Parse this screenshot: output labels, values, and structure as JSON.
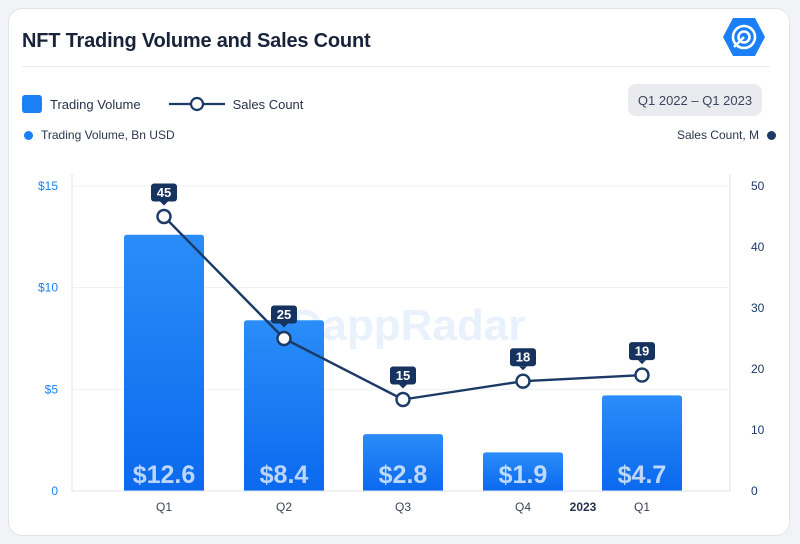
{
  "title": "NFT Trading Volume and Sales Count",
  "logo_icon": "dappradar-logo-icon",
  "legend": {
    "bar_label": "Trading Volume",
    "line_label": "Sales Count"
  },
  "date_range": "Q1 2022 – Q1 2023",
  "left_axis_title": "Trading Volume, Bn USD",
  "right_axis_title": "Sales Count, M",
  "watermark": "DappRadar",
  "colors": {
    "bar_top": "#1f86f7",
    "bar_bottom": "#0d6cf0",
    "line": "#1b3a66",
    "left_axis": "#1b7ff5",
    "right_axis": "#1b3a66",
    "label_bg": "#15335e"
  },
  "chart_data": {
    "type": "bar",
    "categories": [
      "Q1",
      "Q2",
      "Q3",
      "Q4",
      "Q1"
    ],
    "year_marker": "2023",
    "series": [
      {
        "name": "Trading Volume",
        "type": "bar",
        "axis": "left",
        "values": [
          12.6,
          8.4,
          2.8,
          1.9,
          4.7
        ],
        "labels": [
          "$12.6",
          "$8.4",
          "$2.8",
          "$1.9",
          "$4.7"
        ]
      },
      {
        "name": "Sales Count",
        "type": "line",
        "axis": "right",
        "values": [
          45,
          25,
          15,
          18,
          19
        ],
        "labels": [
          "45",
          "25",
          "15",
          "18",
          "19"
        ]
      }
    ],
    "left_axis": {
      "range": [
        0,
        15
      ],
      "ticks": [
        0,
        5,
        10,
        15
      ],
      "tick_labels": [
        "0",
        "$5",
        "$10",
        "$15"
      ]
    },
    "right_axis": {
      "range": [
        0,
        50
      ],
      "ticks": [
        0,
        10,
        20,
        30,
        40,
        50
      ],
      "tick_labels": [
        "0",
        "10",
        "20",
        "30",
        "40",
        "50"
      ]
    },
    "grid": true
  }
}
